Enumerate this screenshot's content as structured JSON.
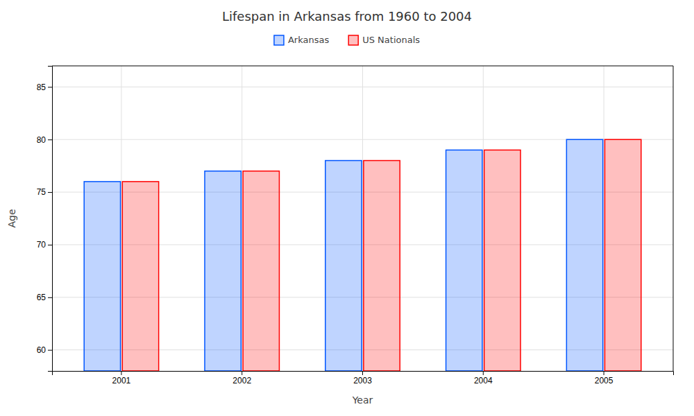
{
  "chart_data": {
    "type": "bar",
    "title": "Lifespan in Arkansas from 1960 to 2004",
    "xlabel": "Year",
    "ylabel": "Age",
    "categories": [
      "2001",
      "2002",
      "2003",
      "2004",
      "2005"
    ],
    "series": [
      {
        "name": "Arkansas",
        "color": "#0055ff",
        "values": [
          76,
          77,
          78,
          79,
          80
        ]
      },
      {
        "name": "US Nationals",
        "color": "#ff0000",
        "values": [
          76,
          77,
          78,
          79,
          80
        ]
      }
    ],
    "ylim": [
      58,
      87
    ],
    "yticks": [
      60,
      65,
      70,
      75,
      80,
      85
    ],
    "grid": true,
    "legend": "top"
  }
}
